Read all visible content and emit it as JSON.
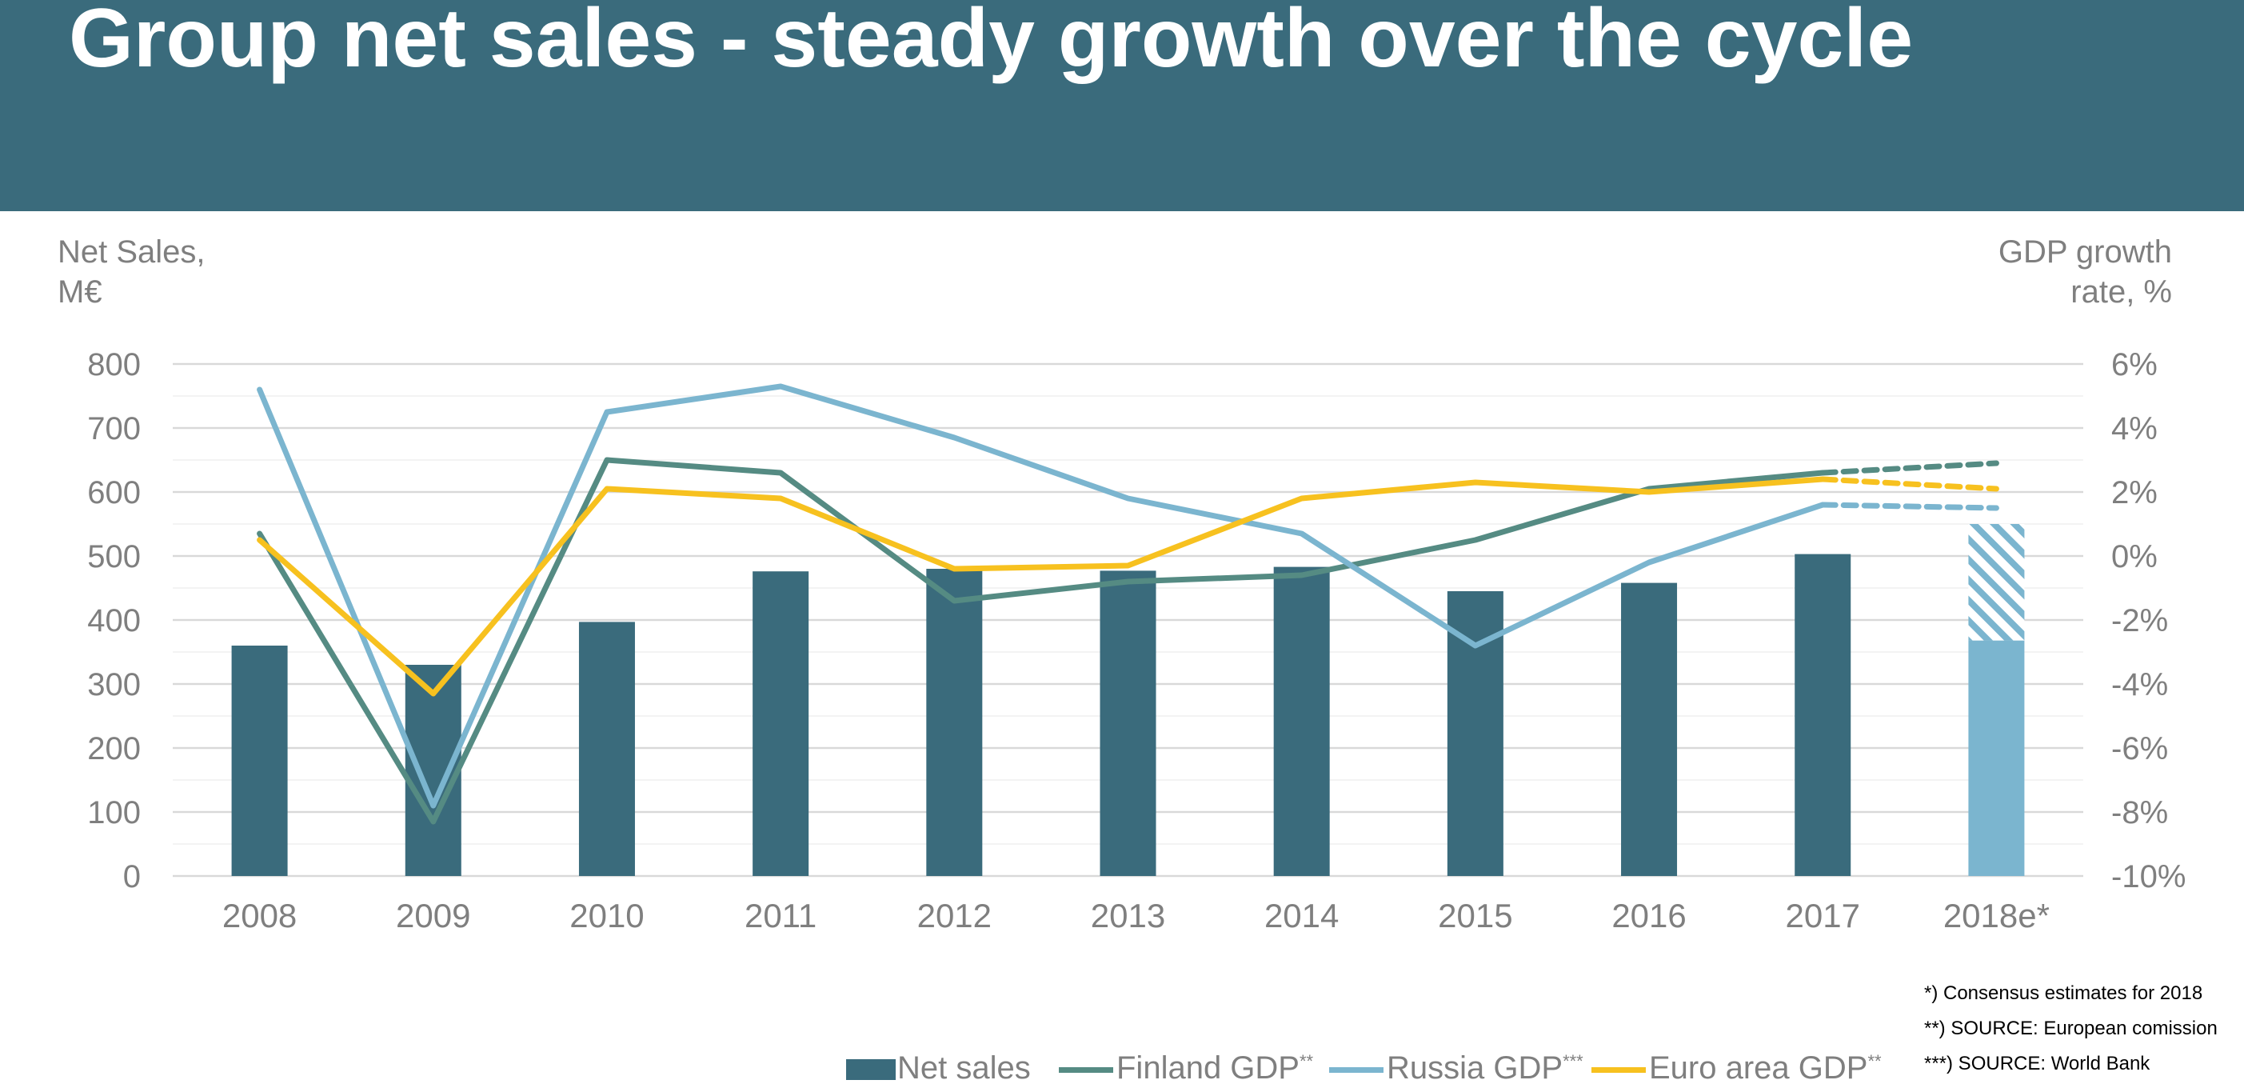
{
  "title": "Group net sales - steady growth over the cycle",
  "left_axis_title": [
    "Net Sales,",
    "M€"
  ],
  "right_axis_title": [
    "GDP growth",
    "rate, %"
  ],
  "chart_data": {
    "type": "bar+line",
    "categories": [
      "2008",
      "2009",
      "2010",
      "2011",
      "2012",
      "2013",
      "2014",
      "2015",
      "2016",
      "2017",
      "2018e*"
    ],
    "left_axis": {
      "label": "Net Sales, M€",
      "ylim": [
        0,
        800
      ],
      "ticks": [
        0,
        100,
        200,
        300,
        400,
        500,
        600,
        700,
        800
      ],
      "tick_labels": [
        "0",
        "100",
        "200",
        "300",
        "400",
        "500",
        "600",
        "700",
        "800"
      ]
    },
    "right_axis": {
      "label": "GDP growth rate, %",
      "ylim": [
        -10,
        6
      ],
      "ticks": [
        -10,
        -8,
        -6,
        -4,
        -2,
        0,
        2,
        4,
        6
      ],
      "tick_labels": [
        "-10%",
        "-8%",
        "-6%",
        "-4%",
        "-2%",
        "0%",
        "2%",
        "4%",
        "6%"
      ]
    },
    "bars": {
      "name": "Net sales",
      "values": [
        360,
        330,
        397,
        476,
        480,
        477,
        483,
        445,
        458,
        503,
        368
      ],
      "estimate_upper": 550,
      "color": "#3A6B7C",
      "estimate_color": "#7BB5CF"
    },
    "series": [
      {
        "name": "Finland GDP",
        "sup": "**",
        "color": "#558B83",
        "axis": "right",
        "values": [
          0.7,
          -8.3,
          3.0,
          2.6,
          -1.4,
          -0.8,
          -0.6,
          0.5,
          2.1,
          2.6,
          2.9
        ],
        "dashed_from_index": 9
      },
      {
        "name": "Russia GDP",
        "sup": "***",
        "color": "#7BB5CF",
        "axis": "right",
        "values": [
          5.2,
          -7.8,
          4.5,
          5.3,
          3.7,
          1.8,
          0.7,
          -2.8,
          -0.2,
          1.6,
          1.5
        ],
        "dashed_from_index": 9
      },
      {
        "name": "Euro area GDP",
        "sup": "**",
        "color": "#F7C11F",
        "axis": "right",
        "values": [
          0.5,
          -4.3,
          2.1,
          1.8,
          -0.4,
          -0.3,
          1.8,
          2.3,
          2.0,
          2.4,
          2.1
        ],
        "dashed_from_index": 9
      }
    ],
    "legend_position": "bottom",
    "gridlines": true
  },
  "notes": [
    "*) Consensus estimates for 2018",
    "**) SOURCE: European comission",
    "***) SOURCE:  World Bank"
  ],
  "legend": [
    {
      "label": "Net sales",
      "sup": "",
      "type": "bar",
      "color": "#3A6B7C"
    },
    {
      "label": "Finland GDP",
      "sup": "**",
      "type": "line",
      "color": "#558B83"
    },
    {
      "label": "Russia GDP",
      "sup": "***",
      "type": "line",
      "color": "#7BB5CF"
    },
    {
      "label": "Euro area GDP",
      "sup": "**",
      "type": "line",
      "color": "#F7C11F"
    }
  ]
}
